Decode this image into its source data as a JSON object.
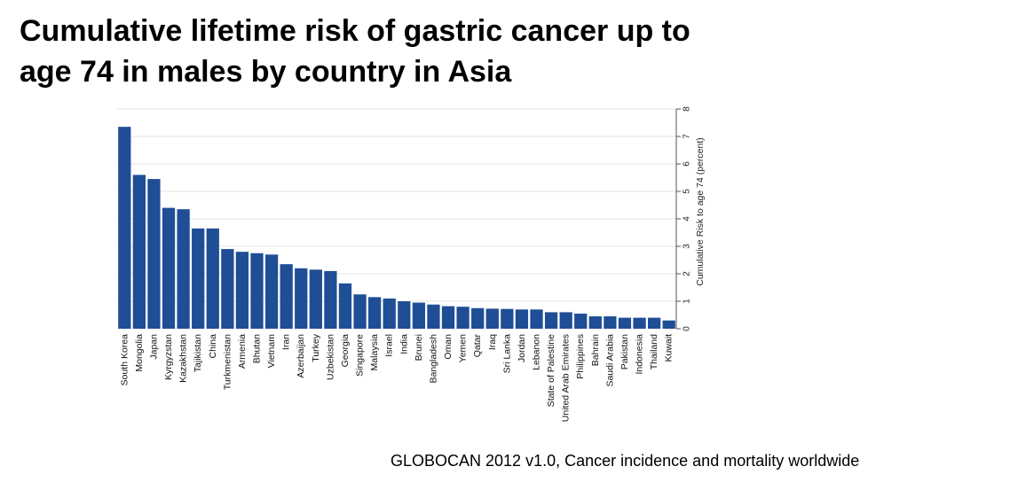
{
  "title_line1": "Cumulative lifetime risk of gastric cancer up to",
  "title_line2": "age 74 in males by country in Asia",
  "source": "GLOBOCAN 2012 v1.0, Cancer incidence and mortality worldwide",
  "chart_data": {
    "type": "bar",
    "title": "",
    "xlabel": "",
    "ylabel": "Cumulative Risk to age 74 (percent)",
    "ylim": [
      0,
      8
    ],
    "yticks": [
      0,
      1,
      2,
      3,
      4,
      5,
      6,
      7,
      8
    ],
    "y_axis_side": "right",
    "grid": true,
    "bar_color": "#1f4e96",
    "grid_color": "#e3e3e3",
    "categories": [
      "South Korea",
      "Mongolia",
      "Japan",
      "Kyrgyzstan",
      "Kazakhstan",
      "Tajikistan",
      "China",
      "Turkmenistan",
      "Armenia",
      "Bhutan",
      "Vietnam",
      "Iran",
      "Azerbaijan",
      "Turkey",
      "Uzbekistan",
      "Georgia",
      "Singapore",
      "Malaysia",
      "Israel",
      "India",
      "Brunei",
      "Bangladesh",
      "Oman",
      "Yemen",
      "Qatar",
      "Iraq",
      "Sri Lanka",
      "Jordan",
      "Lebanon",
      "State of Palestine",
      "United Arab Emirates",
      "Philippines",
      "Bahrain",
      "Saudi Arabia",
      "Pakistan",
      "Indonesia",
      "Thailand",
      "Kuwait"
    ],
    "values": [
      7.35,
      5.6,
      5.45,
      4.4,
      4.35,
      3.65,
      3.65,
      2.9,
      2.8,
      2.75,
      2.7,
      2.35,
      2.2,
      2.15,
      2.1,
      1.65,
      1.25,
      1.15,
      1.1,
      1.0,
      0.95,
      0.88,
      0.82,
      0.8,
      0.75,
      0.73,
      0.72,
      0.7,
      0.7,
      0.6,
      0.6,
      0.55,
      0.45,
      0.45,
      0.4,
      0.4,
      0.4,
      0.3
    ]
  }
}
